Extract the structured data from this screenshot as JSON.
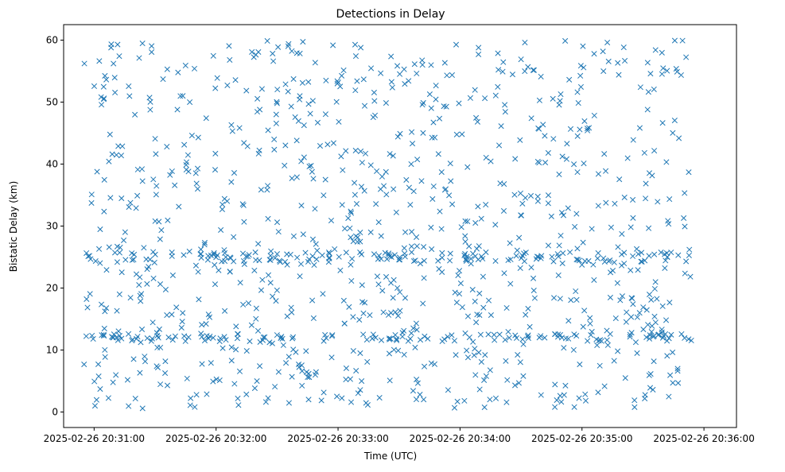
{
  "chart_data": {
    "type": "scatter",
    "title": "Detections in Delay",
    "xlabel": "Time (UTC)",
    "ylabel": "Bistatic Delay (km)",
    "marker": "x",
    "color": "#1f77b4",
    "xlim_sec": [
      -15,
      316
    ],
    "ylim": [
      -2.5,
      62.5
    ],
    "x_ticks": [
      {
        "sec": 0,
        "label": "2025-02-26 20:31:00"
      },
      {
        "sec": 60,
        "label": "2025-02-26 20:32:00"
      },
      {
        "sec": 120,
        "label": "2025-02-26 20:33:00"
      },
      {
        "sec": 180,
        "label": "2025-02-26 20:34:00"
      },
      {
        "sec": 240,
        "label": "2025-02-26 20:35:00"
      },
      {
        "sec": 300,
        "label": "2025-02-26 20:36:00"
      }
    ],
    "y_ticks": [
      {
        "value": 0,
        "label": "0"
      },
      {
        "value": 10,
        "label": "10"
      },
      {
        "value": 20,
        "label": "20"
      },
      {
        "value": 30,
        "label": "30"
      },
      {
        "value": 40,
        "label": "40"
      },
      {
        "value": 50,
        "label": "50"
      },
      {
        "value": 60,
        "label": "60"
      }
    ],
    "x_start": "2025-02-26 20:30:55",
    "x_end": "2025-02-26 20:35:54",
    "band_centers": [
      25,
      12
    ],
    "point_count": 1200,
    "grid": false,
    "legend": "none"
  }
}
